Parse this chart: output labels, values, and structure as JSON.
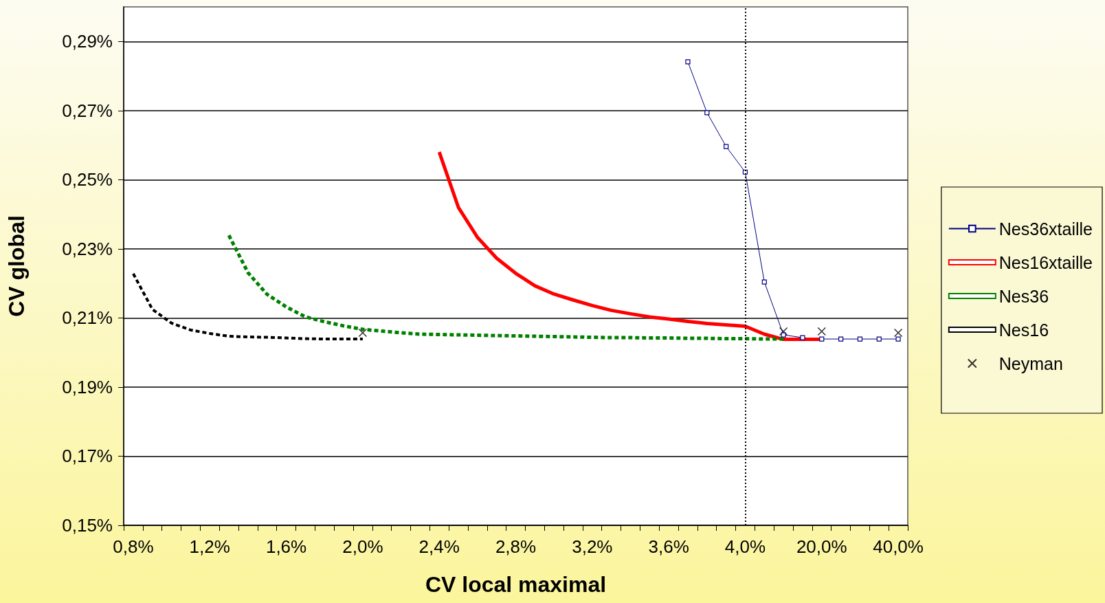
{
  "chart_data": {
    "type": "line",
    "xlabel": "CV local maximal",
    "ylabel": "CV global",
    "categories": [
      "0,8%",
      null,
      null,
      null,
      "1,2%",
      null,
      null,
      null,
      "1,6%",
      null,
      null,
      null,
      "2,0%",
      null,
      null,
      null,
      "2,4%",
      null,
      null,
      null,
      "2,8%",
      null,
      null,
      null,
      "3,2%",
      null,
      null,
      null,
      "3,6%",
      null,
      null,
      null,
      "4,0%",
      null,
      null,
      null,
      "20,0%",
      null,
      null,
      null,
      "40,0%"
    ],
    "ylim": [
      0.15,
      0.3
    ],
    "yticks": [
      {
        "value": 0.15,
        "label": "0,15%"
      },
      {
        "value": 0.17,
        "label": "0,17%"
      },
      {
        "value": 0.19,
        "label": "0,19%"
      },
      {
        "value": 0.21,
        "label": "0,21%"
      },
      {
        "value": 0.23,
        "label": "0,23%"
      },
      {
        "value": 0.25,
        "label": "0,25%"
      },
      {
        "value": 0.27,
        "label": "0,27%"
      },
      {
        "value": 0.29,
        "label": "0,29%"
      }
    ],
    "grid": "y",
    "legend": "right",
    "ref_lines": [
      {
        "axis": "x",
        "value": "4,0%",
        "color": "#000000",
        "line_style": "dotted"
      }
    ],
    "series": [
      {
        "name": "Nes36xtaille",
        "color": "#000080",
        "marker": "square",
        "line_style": "solid",
        "values": [
          null,
          null,
          null,
          null,
          null,
          null,
          null,
          null,
          null,
          null,
          null,
          null,
          null,
          null,
          null,
          null,
          null,
          null,
          null,
          null,
          null,
          null,
          null,
          null,
          null,
          null,
          null,
          null,
          null,
          0.2841,
          0.2694,
          0.2596,
          0.2522,
          0.2204,
          0.2051,
          0.2043,
          0.2039,
          0.2039,
          0.2039,
          0.2039,
          0.2039
        ]
      },
      {
        "name": "Nes16xtaille",
        "color": "#ff0000",
        "marker": "none",
        "line_style": "solid",
        "values": [
          null,
          null,
          null,
          null,
          null,
          null,
          null,
          null,
          null,
          null,
          null,
          null,
          null,
          null,
          null,
          null,
          0.258,
          0.242,
          0.2333,
          0.2273,
          0.2229,
          0.2193,
          0.2169,
          0.2152,
          0.2136,
          0.2122,
          0.2112,
          0.2103,
          0.2097,
          0.209,
          0.2084,
          0.208,
          0.2076,
          0.2053,
          0.2038,
          0.2038,
          0.2038,
          null,
          null,
          null,
          null
        ]
      },
      {
        "name": "Nes36",
        "color": "#008000",
        "marker": "none",
        "line_style": "dashed",
        "values": [
          null,
          null,
          null,
          null,
          null,
          0.2339,
          0.2231,
          0.2168,
          0.2132,
          0.2103,
          0.2089,
          0.2077,
          0.2067,
          0.2062,
          0.2057,
          0.2053,
          0.2052,
          0.2051,
          0.205,
          0.2049,
          0.2048,
          0.2047,
          0.2046,
          0.2045,
          0.2044,
          0.2043,
          0.2043,
          0.2042,
          0.2042,
          0.2041,
          0.2041,
          0.204,
          0.204,
          0.2039,
          0.2039,
          null,
          null,
          null,
          null,
          null,
          null
        ]
      },
      {
        "name": "Nes16",
        "color": "#000000",
        "marker": "none",
        "line_style": "dashed",
        "values": [
          0.2228,
          0.2125,
          0.2085,
          0.2065,
          0.2055,
          0.2047,
          0.2045,
          0.2044,
          0.2042,
          0.204,
          0.2039,
          0.2039,
          0.2039,
          null,
          null,
          null,
          null,
          null,
          null,
          null,
          null,
          null,
          null,
          null,
          null,
          null,
          null,
          null,
          null,
          null,
          null,
          null,
          null,
          null,
          null,
          null,
          null,
          null,
          null,
          null,
          null
        ]
      },
      {
        "name": "Neyman",
        "type": "scatter",
        "color": "#000000",
        "marker": "cross",
        "values": [
          null,
          null,
          null,
          null,
          null,
          null,
          null,
          null,
          null,
          null,
          null,
          null,
          0.2057,
          null,
          null,
          null,
          null,
          null,
          null,
          null,
          null,
          null,
          null,
          null,
          null,
          null,
          null,
          null,
          null,
          null,
          null,
          null,
          null,
          null,
          0.2061,
          null,
          0.2061,
          null,
          null,
          null,
          0.2057
        ]
      }
    ]
  }
}
